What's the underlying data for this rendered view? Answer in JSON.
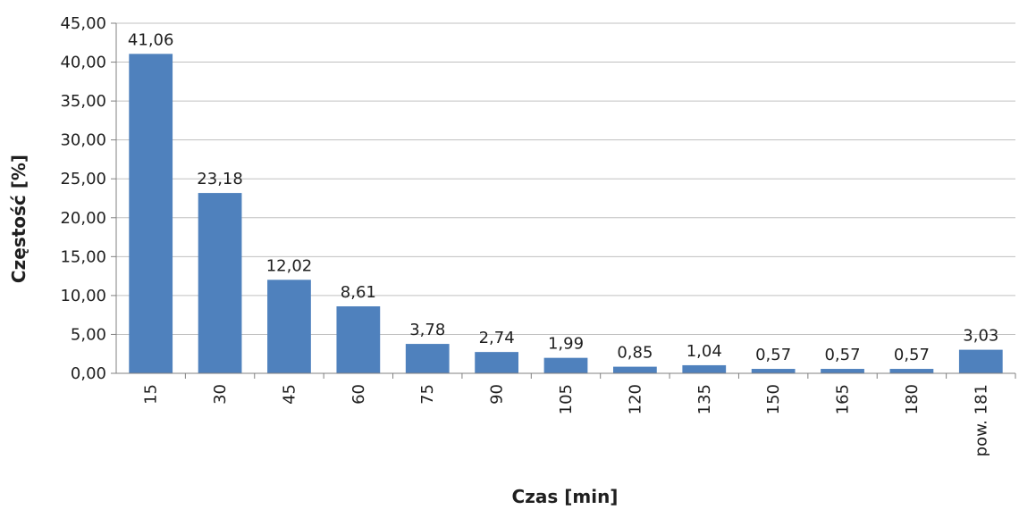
{
  "chart_data": {
    "type": "bar",
    "title": "",
    "xlabel": "Czas [min]",
    "ylabel": "Częstość [%]",
    "ylim": [
      0,
      45
    ],
    "ytick_step": 5,
    "y_tick_labels": [
      "0,00",
      "5,00",
      "10,00",
      "15,00",
      "20,00",
      "25,00",
      "30,00",
      "35,00",
      "40,00",
      "45,00"
    ],
    "categories": [
      "15",
      "30",
      "45",
      "60",
      "75",
      "90",
      "105",
      "120",
      "135",
      "150",
      "165",
      "180",
      "pow. 181"
    ],
    "values": [
      41.06,
      23.18,
      12.02,
      8.61,
      3.78,
      2.74,
      1.99,
      0.85,
      1.04,
      0.57,
      0.57,
      0.57,
      3.03
    ],
    "value_labels": [
      "41,06",
      "23,18",
      "12,02",
      "8,61",
      "3,78",
      "2,74",
      "1,99",
      "0,85",
      "1,04",
      "0,57",
      "0,57",
      "0,57",
      "3,03"
    ],
    "grid": true,
    "legend": "none",
    "bar_color": "#4F81BD"
  }
}
